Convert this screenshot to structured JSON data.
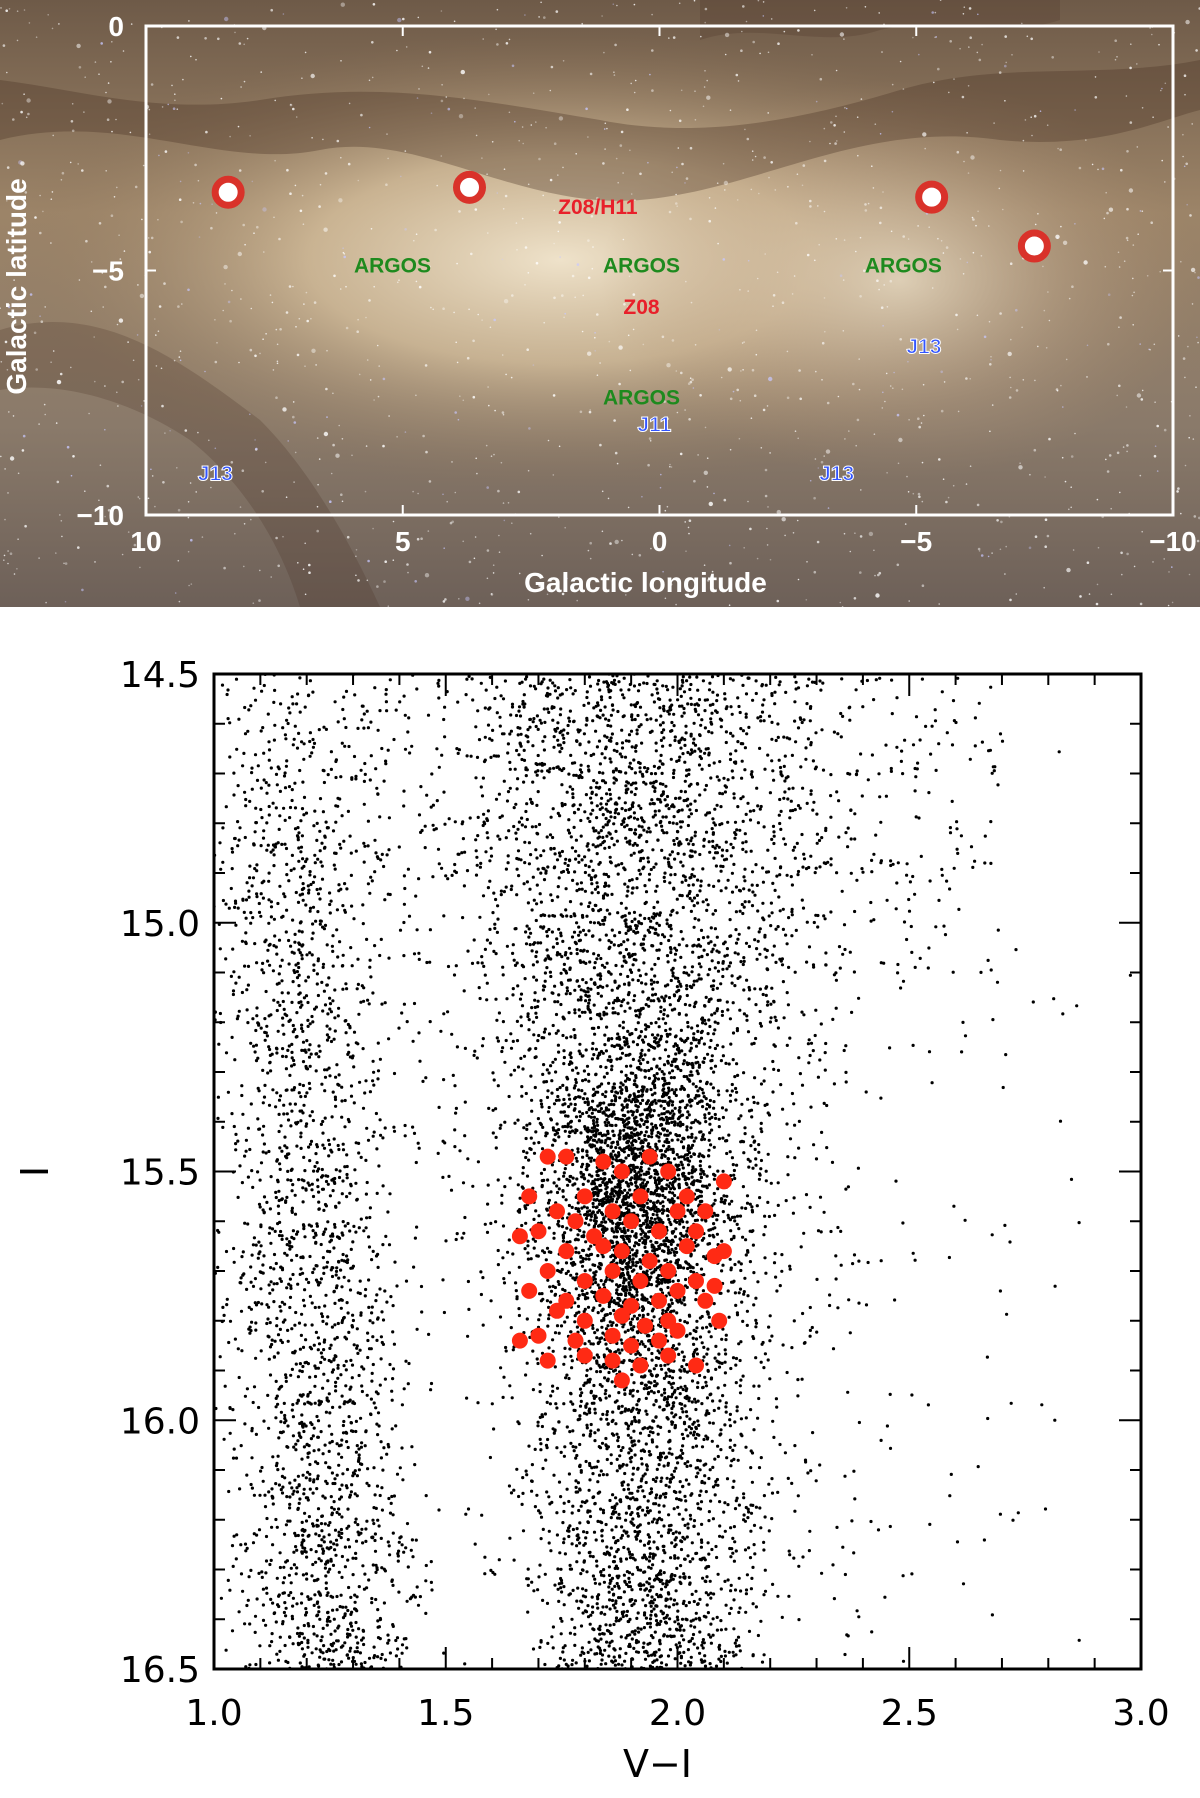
{
  "chart_data": [
    {
      "type": "scatter",
      "xlabel": "Galactic longitude",
      "ylabel": "Galactic latitude",
      "xlim": [
        10,
        -10
      ],
      "ylim": [
        -10,
        0
      ],
      "x_ticks": [
        "10",
        "5",
        "0",
        "−5",
        "−10"
      ],
      "x_tick_values": [
        10,
        5,
        0,
        -5,
        -10
      ],
      "y_ticks": [
        "0",
        "−5",
        "−10"
      ],
      "y_tick_values": [
        0,
        -5,
        -10
      ],
      "background": "Milky Way bulge photograph",
      "grid": false,
      "fields": [
        {
          "name": "circle-field-1",
          "l": 8.4,
          "b": -3.4
        },
        {
          "name": "circle-field-2",
          "l": 3.7,
          "b": -3.3
        },
        {
          "name": "circle-field-3",
          "l": -5.3,
          "b": -3.5
        },
        {
          "name": "circle-field-4",
          "l": -7.3,
          "b": -4.5
        }
      ],
      "annotations": [
        {
          "text": "Z08/H11",
          "l": 1.2,
          "b": -3.7,
          "color": "#e8202a"
        },
        {
          "text": "ARGOS",
          "l": 5.2,
          "b": -4.9,
          "color": "#1e8a1e"
        },
        {
          "text": "ARGOS",
          "l": 0.35,
          "b": -4.9,
          "color": "#1e8a1e"
        },
        {
          "text": "ARGOS",
          "l": -4.75,
          "b": -4.9,
          "color": "#1e8a1e"
        },
        {
          "text": "Z08",
          "l": 0.35,
          "b": -5.75,
          "color": "#e8202a"
        },
        {
          "text": "J13",
          "l": -5.15,
          "b": -6.55,
          "color": "#3355ff"
        },
        {
          "text": "ARGOS",
          "l": 0.35,
          "b": -7.6,
          "color": "#1e8a1e"
        },
        {
          "text": "J11",
          "l": 0.1,
          "b": -8.15,
          "color": "#3355ff"
        },
        {
          "text": "J13",
          "l": 8.65,
          "b": -9.15,
          "color": "#3355ff"
        },
        {
          "text": "J13",
          "l": -3.45,
          "b": -9.15,
          "color": "#3355ff"
        }
      ]
    },
    {
      "type": "scatter",
      "xlabel": "V−I",
      "ylabel": "I",
      "xlim": [
        1.0,
        3.0
      ],
      "ylim": [
        16.5,
        14.5
      ],
      "y_inverted": true,
      "x_ticks": [
        "1.0",
        "1.5",
        "2.0",
        "2.5",
        "3.0"
      ],
      "x_tick_values": [
        1.0,
        1.5,
        2.0,
        2.5,
        3.0
      ],
      "y_ticks": [
        "14.5",
        "15.0",
        "15.5",
        "16.0",
        "16.5"
      ],
      "y_tick_values": [
        14.5,
        15.0,
        15.5,
        16.0,
        16.5
      ],
      "grid": false,
      "series": [
        {
          "color": "#000000",
          "description_density": "field stars: red giant branch band centred near V−I≈1.9 spanning I 14.5–16.5, red clump concentration near I≈15.3–16.0, blue foreground disk sequence near V−I≈1.1–1.4",
          "values": "dense point cloud (see script density model)"
        },
        {
          "color": "#ff2a14",
          "values_vi_I": [
            [
              1.72,
              15.47
            ],
            [
              1.76,
              15.47
            ],
            [
              1.84,
              15.48
            ],
            [
              1.88,
              15.5
            ],
            [
              1.94,
              15.47
            ],
            [
              1.98,
              15.5
            ],
            [
              2.1,
              15.52
            ],
            [
              1.68,
              15.55
            ],
            [
              1.74,
              15.58
            ],
            [
              1.8,
              15.55
            ],
            [
              1.86,
              15.58
            ],
            [
              1.92,
              15.55
            ],
            [
              2.02,
              15.55
            ],
            [
              2.06,
              15.58
            ],
            [
              1.7,
              15.62
            ],
            [
              1.78,
              15.6
            ],
            [
              1.82,
              15.63
            ],
            [
              1.9,
              15.6
            ],
            [
              1.96,
              15.62
            ],
            [
              2.0,
              15.58
            ],
            [
              2.04,
              15.62
            ],
            [
              1.66,
              15.63
            ],
            [
              1.76,
              15.66
            ],
            [
              1.84,
              15.65
            ],
            [
              1.88,
              15.66
            ],
            [
              1.94,
              15.68
            ],
            [
              2.02,
              15.65
            ],
            [
              2.08,
              15.67
            ],
            [
              1.72,
              15.7
            ],
            [
              1.8,
              15.72
            ],
            [
              1.86,
              15.7
            ],
            [
              1.92,
              15.72
            ],
            [
              1.98,
              15.7
            ],
            [
              2.04,
              15.72
            ],
            [
              2.1,
              15.66
            ],
            [
              1.68,
              15.74
            ],
            [
              1.76,
              15.76
            ],
            [
              1.84,
              15.75
            ],
            [
              1.9,
              15.77
            ],
            [
              1.96,
              15.76
            ],
            [
              2.0,
              15.74
            ],
            [
              2.08,
              15.73
            ],
            [
              1.74,
              15.78
            ],
            [
              1.8,
              15.8
            ],
            [
              1.88,
              15.79
            ],
            [
              1.93,
              15.81
            ],
            [
              1.98,
              15.8
            ],
            [
              2.09,
              15.8
            ],
            [
              2.06,
              15.76
            ],
            [
              1.7,
              15.83
            ],
            [
              1.78,
              15.84
            ],
            [
              1.86,
              15.83
            ],
            [
              1.9,
              15.85
            ],
            [
              1.96,
              15.84
            ],
            [
              2.0,
              15.82
            ],
            [
              1.66,
              15.84
            ],
            [
              1.72,
              15.88
            ],
            [
              1.8,
              15.87
            ],
            [
              1.86,
              15.88
            ],
            [
              1.92,
              15.89
            ],
            [
              1.98,
              15.87
            ],
            [
              2.04,
              15.89
            ],
            [
              1.88,
              15.92
            ]
          ]
        }
      ]
    }
  ]
}
